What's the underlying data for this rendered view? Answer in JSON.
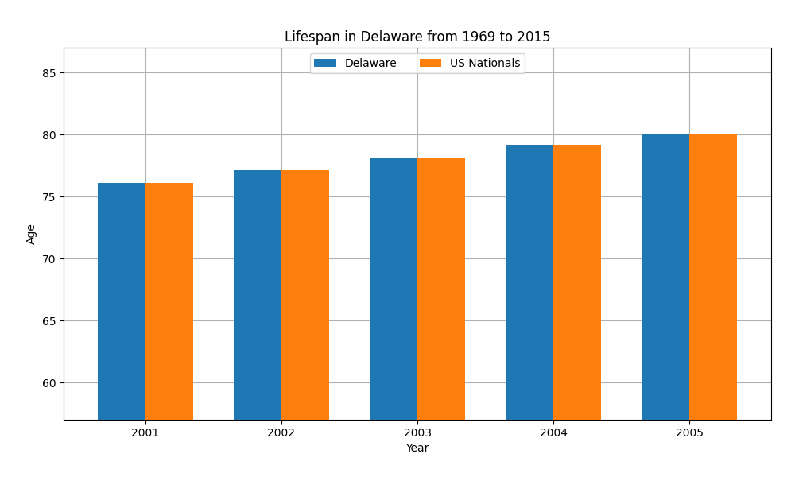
{
  "chart_data": {
    "type": "bar",
    "title": "Lifespan in Delaware from 1969 to 2015",
    "x_label": "Year",
    "y_label": "Age",
    "categories": [
      "2001",
      "2002",
      "2003",
      "2004",
      "2005"
    ],
    "series": [
      {
        "name": "Delaware",
        "values": [
          76.1,
          77.1,
          78.1,
          79.1,
          80.1
        ]
      },
      {
        "name": "US Nationals",
        "values": [
          76.1,
          77.1,
          78.1,
          79.1,
          80.1
        ]
      }
    ],
    "ylim": [
      57,
      87
    ],
    "yticks": [
      60,
      65,
      70,
      75,
      80,
      85
    ],
    "grid": true,
    "legend": "upper center"
  }
}
